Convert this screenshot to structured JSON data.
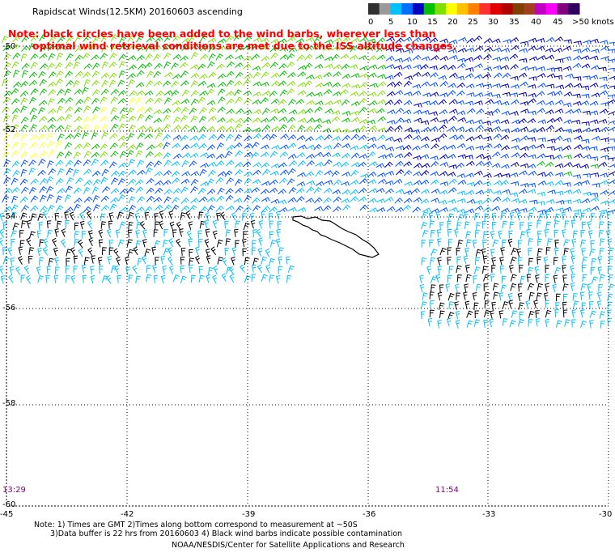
{
  "header": {
    "title": "Rapidscat Winds(12.5KM) 20160603 ascending",
    "note_line1": "Note: black circles have been added to the wind barbs, wherever less than",
    "note_line2": "optimal wind retrieval conditions are met due to the ISS altitude changes."
  },
  "legend": {
    "labels": [
      "0",
      "5",
      "10",
      "15",
      "20",
      "25",
      "30",
      "35",
      "40",
      "45",
      ">50 knots"
    ],
    "colors": [
      "#303030",
      "#9a9a9a",
      "#00c0ff",
      "#0070ff",
      "#0000c0",
      "#00c000",
      "#7fe000",
      "#ffff00",
      "#ffc000",
      "#ff8000",
      "#ff3030",
      "#e00000",
      "#b00000",
      "#804000",
      "#a04020",
      "#c000c0",
      "#ff00ff",
      "#800080",
      "#300060"
    ]
  },
  "map": {
    "lat_labels": [
      "-50",
      "-52",
      "-54",
      "-56",
      "-58",
      "-60"
    ],
    "lon_labels": [
      "-45",
      "-42",
      "-39",
      "-36",
      "-33",
      "-30"
    ],
    "pass_times": [
      "13:29",
      "11:54"
    ],
    "colors": {
      "black_barb": "#000000",
      "light_blue": "#00c0ff",
      "blue": "#0050ff",
      "dark_blue": "#0000b0",
      "green": "#00c000",
      "light_green": "#80e000",
      "yellow": "#ffff30",
      "land_outline": "#000000",
      "grid": "#000000"
    }
  },
  "footer": {
    "line1": "Note: 1) Times are GMT 2)Times along bottom correspond to measurement at ~50S",
    "line2": "3)Data buffer is 22 hrs from 20160603 4) Black wind barbs indicate possible contamination",
    "line3": "NOAA/NESDIS/Center for Satellite Applications and Research"
  }
}
